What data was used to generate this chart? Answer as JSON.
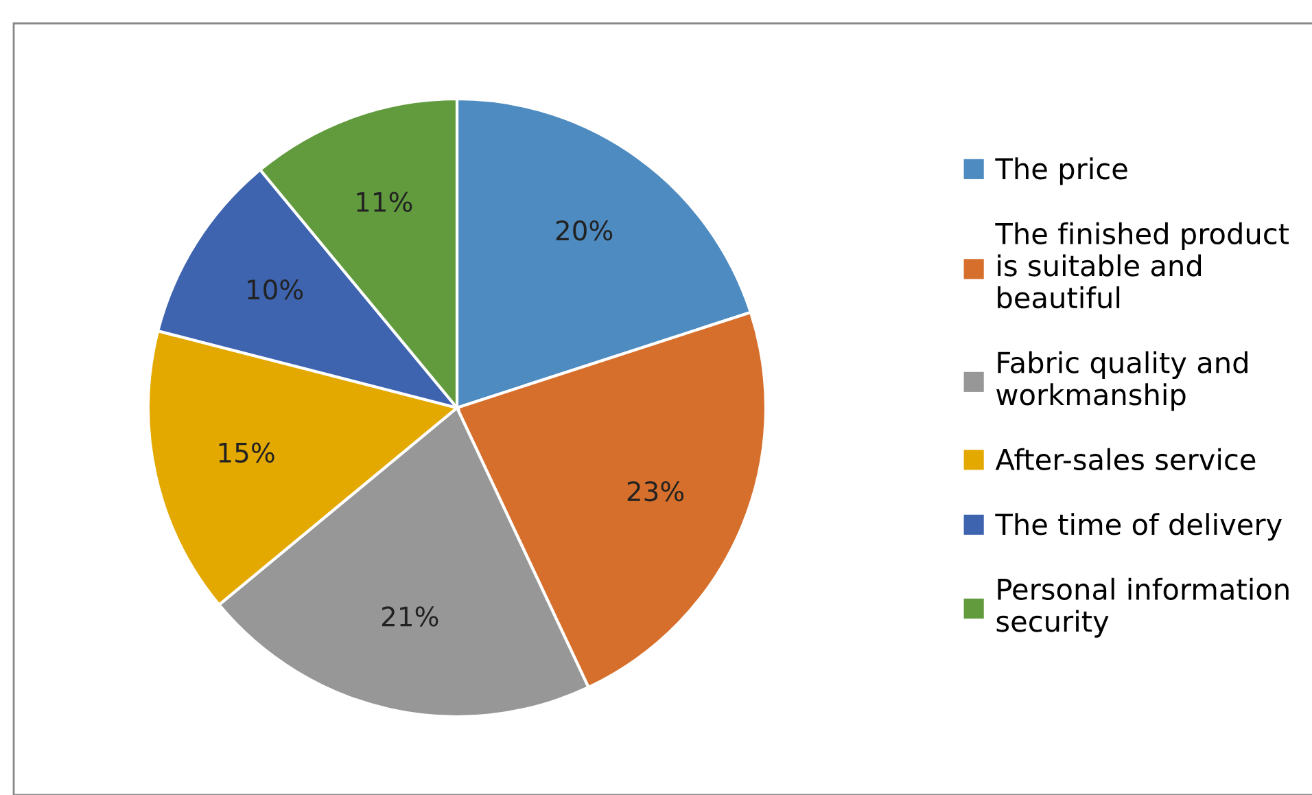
{
  "chart_data": {
    "type": "pie",
    "categories": [
      "The price",
      "The finished product is suitable and beautiful",
      "Fabric quality and workmanship",
      "After-sales service",
      "The time of delivery",
      "Personal information security"
    ],
    "values": [
      20,
      23,
      21,
      15,
      10,
      11
    ],
    "value_labels": [
      "20%",
      "23%",
      "21%",
      "15%",
      "10%",
      "11%"
    ],
    "colors": [
      "#4e8bc0",
      "#d66f2b",
      "#979797",
      "#e4a900",
      "#3e64b0",
      "#629b3e"
    ],
    "legend": "right"
  }
}
